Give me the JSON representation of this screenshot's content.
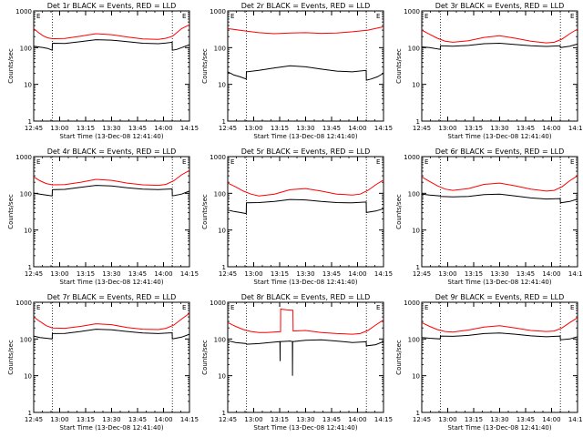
{
  "chart_data": [
    {
      "type": "line",
      "title": "Det 1r BLACK = Events, RED = LLD",
      "xlabel": "Start Time (13-Dec-08 12:41:40)",
      "ylabel": "Counts/sec",
      "y_scale": "log",
      "ylim": [
        1,
        1000
      ],
      "xlim": [
        0,
        100
      ],
      "x_ticks": [
        "12:45",
        "13:00",
        "13:15",
        "13:30",
        "13:45",
        "14:00",
        "14:15"
      ],
      "y_ticks": [
        "1",
        "10",
        "100",
        "1000"
      ],
      "corner_labels": [
        "E",
        "E"
      ],
      "dotted_lines_x": [
        12,
        89
      ],
      "series": [
        {
          "name": "LLD",
          "color": "#ff0000",
          "x": [
            0,
            3,
            6,
            9,
            12,
            13,
            20,
            30,
            40,
            50,
            60,
            70,
            80,
            85,
            89,
            90,
            95,
            100
          ],
          "y": [
            330,
            260,
            210,
            185,
            175,
            175,
            178,
            205,
            240,
            225,
            195,
            172,
            168,
            180,
            205,
            220,
            330,
            420
          ]
        },
        {
          "name": "Events",
          "color": "#000000",
          "x": [
            0,
            3,
            6,
            9,
            11.9,
            12,
            13,
            20,
            30,
            40,
            50,
            60,
            70,
            80,
            85,
            88.9,
            89,
            92,
            95,
            100
          ],
          "y": [
            110,
            105,
            100,
            95,
            85,
            130,
            132,
            130,
            145,
            165,
            160,
            145,
            132,
            128,
            133,
            140,
            85,
            90,
            100,
            120
          ]
        }
      ]
    },
    {
      "type": "line",
      "title": "Det 2r BLACK = Events, RED = LLD",
      "xlabel": "Start Time (13-Dec-08 12:41:40)",
      "ylabel": "Counts/sec",
      "y_scale": "log",
      "ylim": [
        1,
        1000
      ],
      "xlim": [
        0,
        100
      ],
      "x_ticks": [
        "12:45",
        "13:00",
        "13:15",
        "13:30",
        "13:45",
        "14:00",
        "14:15"
      ],
      "y_ticks": [
        "1",
        "10",
        "100",
        "1000"
      ],
      "corner_labels": [
        "E",
        "E"
      ],
      "dotted_lines_x": [
        12,
        89
      ],
      "series": [
        {
          "name": "LLD",
          "color": "#ff0000",
          "x": [
            0,
            10,
            20,
            30,
            40,
            50,
            60,
            70,
            80,
            90,
            100
          ],
          "y": [
            330,
            290,
            255,
            240,
            250,
            255,
            245,
            250,
            270,
            300,
            370
          ]
        },
        {
          "name": "Events",
          "color": "#000000",
          "x": [
            0,
            4,
            8,
            11.9,
            12,
            20,
            30,
            40,
            50,
            60,
            70,
            80,
            88.9,
            89,
            92,
            96,
            100
          ],
          "y": [
            22,
            18,
            16,
            14,
            22,
            24,
            28,
            32,
            30,
            26,
            23,
            22,
            24,
            13,
            14,
            16,
            20
          ]
        }
      ]
    },
    {
      "type": "line",
      "title": "Det 3r BLACK = Events, RED = LLD",
      "xlabel": "Start Time (13-Dec-08 12:41:40)",
      "ylabel": "Counts/sec",
      "y_scale": "log",
      "ylim": [
        1,
        1000
      ],
      "xlim": [
        0,
        100
      ],
      "x_ticks": [
        "12:45",
        "13:00",
        "13:15",
        "13:30",
        "13:45",
        "14:00",
        "14:15"
      ],
      "y_ticks": [
        "1",
        "10",
        "100",
        "1000"
      ],
      "corner_labels": [
        "E",
        "E"
      ],
      "dotted_lines_x": [
        12,
        89
      ],
      "series": [
        {
          "name": "LLD",
          "color": "#ff0000",
          "x": [
            0,
            5,
            10,
            15,
            20,
            30,
            40,
            50,
            60,
            70,
            80,
            85,
            90,
            95,
            100
          ],
          "y": [
            300,
            230,
            180,
            150,
            140,
            155,
            190,
            210,
            180,
            150,
            135,
            140,
            170,
            240,
            320
          ]
        },
        {
          "name": "Events",
          "color": "#000000",
          "x": [
            0,
            5,
            11.9,
            12,
            20,
            30,
            40,
            50,
            60,
            70,
            80,
            88.9,
            89,
            95,
            100
          ],
          "y": [
            105,
            100,
            90,
            112,
            110,
            115,
            128,
            132,
            122,
            112,
            108,
            112,
            100,
            110,
            125
          ]
        }
      ]
    },
    {
      "type": "line",
      "title": "Det 4r BLACK = Events, RED = LLD",
      "xlabel": "Start Time (13-Dec-08 12:41:40)",
      "ylabel": "Counts/sec",
      "y_scale": "log",
      "ylim": [
        1,
        1000
      ],
      "xlim": [
        0,
        100
      ],
      "x_ticks": [
        "12:45",
        "13:00",
        "13:15",
        "13:30",
        "13:45",
        "14:00",
        "14:15"
      ],
      "y_ticks": [
        "1",
        "10",
        "100",
        "1000"
      ],
      "corner_labels": [
        "E",
        "E"
      ],
      "dotted_lines_x": [
        12,
        89
      ],
      "series": [
        {
          "name": "LLD",
          "color": "#ff0000",
          "x": [
            0,
            4,
            8,
            12,
            20,
            30,
            40,
            50,
            60,
            70,
            80,
            85,
            90,
            95,
            100
          ],
          "y": [
            280,
            220,
            185,
            170,
            172,
            200,
            240,
            225,
            190,
            170,
            165,
            175,
            220,
            320,
            420
          ]
        },
        {
          "name": "Events",
          "color": "#000000",
          "x": [
            0,
            4,
            8,
            11.9,
            12,
            20,
            30,
            40,
            50,
            60,
            70,
            80,
            88.9,
            89,
            95,
            100
          ],
          "y": [
            100,
            95,
            90,
            85,
            125,
            128,
            145,
            165,
            158,
            142,
            130,
            126,
            132,
            85,
            95,
            115
          ]
        }
      ]
    },
    {
      "type": "line",
      "title": "Det 5r BLACK = Events, RED = LLD",
      "xlabel": "Start Time (13-Dec-08 12:41:40)",
      "ylabel": "Counts/sec",
      "y_scale": "log",
      "ylim": [
        1,
        1000
      ],
      "xlim": [
        0,
        100
      ],
      "x_ticks": [
        "12:45",
        "13:00",
        "13:15",
        "13:30",
        "13:45",
        "14:00",
        "14:15"
      ],
      "y_ticks": [
        "1",
        "10",
        "100",
        "1000"
      ],
      "corner_labels": [
        "E",
        "E"
      ],
      "dotted_lines_x": [
        12,
        89
      ],
      "series": [
        {
          "name": "LLD",
          "color": "#ff0000",
          "x": [
            0,
            5,
            10,
            15,
            20,
            30,
            40,
            50,
            60,
            70,
            80,
            85,
            90,
            95,
            100
          ],
          "y": [
            190,
            150,
            115,
            95,
            85,
            95,
            125,
            135,
            115,
            95,
            90,
            95,
            120,
            170,
            230
          ]
        },
        {
          "name": "Events",
          "color": "#000000",
          "x": [
            0,
            4,
            8,
            11.9,
            12,
            20,
            30,
            40,
            50,
            60,
            70,
            80,
            88.9,
            89,
            95,
            100
          ],
          "y": [
            35,
            32,
            30,
            28,
            55,
            56,
            60,
            68,
            66,
            60,
            56,
            55,
            58,
            30,
            33,
            38
          ]
        }
      ]
    },
    {
      "type": "line",
      "title": "Det 6r BLACK = Events, RED = LLD",
      "xlabel": "Start Time (13-Dec-08 12:41:40)",
      "ylabel": "Counts/sec",
      "y_scale": "log",
      "ylim": [
        1,
        1000
      ],
      "xlim": [
        0,
        100
      ],
      "x_ticks": [
        "12:45",
        "13:00",
        "13:15",
        "13:30",
        "13:45",
        "14:00",
        "14:15"
      ],
      "y_ticks": [
        "1",
        "10",
        "100",
        "1000"
      ],
      "corner_labels": [
        "E",
        "E"
      ],
      "dotted_lines_x": [
        12,
        89
      ],
      "series": [
        {
          "name": "LLD",
          "color": "#ff0000",
          "x": [
            0,
            5,
            10,
            15,
            20,
            30,
            40,
            50,
            60,
            70,
            80,
            85,
            90,
            95,
            100
          ],
          "y": [
            280,
            210,
            160,
            130,
            120,
            135,
            175,
            190,
            160,
            130,
            115,
            120,
            150,
            220,
            300
          ]
        },
        {
          "name": "Events",
          "color": "#000000",
          "x": [
            0,
            5,
            11.9,
            12,
            20,
            30,
            40,
            50,
            60,
            70,
            80,
            88.9,
            89,
            95,
            100
          ],
          "y": [
            95,
            90,
            85,
            82,
            80,
            82,
            92,
            95,
            85,
            75,
            70,
            72,
            55,
            60,
            70
          ]
        }
      ]
    },
    {
      "type": "line",
      "title": "Det 7r BLACK = Events, RED = LLD",
      "xlabel": "Start Time (13-Dec-08 12:41:40)",
      "ylabel": "Counts/sec",
      "y_scale": "log",
      "ylim": [
        1,
        1000
      ],
      "xlim": [
        0,
        100
      ],
      "x_ticks": [
        "12:45",
        "13:00",
        "13:15",
        "13:30",
        "13:45",
        "14:00",
        "14:15"
      ],
      "y_ticks": [
        "1",
        "10",
        "100",
        "1000"
      ],
      "corner_labels": [
        "E",
        "E"
      ],
      "dotted_lines_x": [
        12,
        89
      ],
      "series": [
        {
          "name": "LLD",
          "color": "#ff0000",
          "x": [
            0,
            4,
            8,
            12,
            20,
            30,
            40,
            50,
            60,
            70,
            80,
            85,
            90,
            95,
            100
          ],
          "y": [
            400,
            300,
            230,
            200,
            195,
            220,
            260,
            245,
            205,
            185,
            180,
            195,
            240,
            350,
            500
          ]
        },
        {
          "name": "Events",
          "color": "#000000",
          "x": [
            0,
            4,
            8,
            11.9,
            12,
            20,
            30,
            40,
            50,
            60,
            70,
            80,
            88.9,
            89,
            95,
            100
          ],
          "y": [
            120,
            110,
            105,
            100,
            140,
            142,
            160,
            185,
            178,
            160,
            145,
            140,
            148,
            100,
            112,
            135
          ]
        }
      ]
    },
    {
      "type": "line",
      "title": "Det 8r BLACK = Events, RED = LLD",
      "xlabel": "Start Time (13-Dec-08 12:41:40)",
      "ylabel": "Counts/sec",
      "y_scale": "log",
      "ylim": [
        1,
        1000
      ],
      "xlim": [
        0,
        100
      ],
      "x_ticks": [
        "12:45",
        "13:00",
        "13:15",
        "13:30",
        "13:45",
        "14:00",
        "14:15"
      ],
      "y_ticks": [
        "1",
        "10",
        "100",
        "1000"
      ],
      "corner_labels": [
        "E",
        "E"
      ],
      "dotted_lines_x": [
        12,
        89
      ],
      "series": [
        {
          "name": "LLD",
          "color": "#ff0000",
          "x": [
            0,
            5,
            10,
            15,
            20,
            25,
            33.9,
            34,
            38,
            41.9,
            42,
            50,
            60,
            70,
            80,
            85,
            90,
            95,
            100
          ],
          "y": [
            280,
            220,
            180,
            160,
            150,
            150,
            158,
            650,
            620,
            600,
            165,
            170,
            150,
            140,
            135,
            140,
            170,
            240,
            330
          ]
        },
        {
          "name": "Events",
          "color": "#000000",
          "x": [
            0,
            5,
            11.9,
            12,
            20,
            30,
            33.5,
            33.6,
            33.7,
            40,
            41.5,
            41.6,
            41.7,
            50,
            60,
            70,
            80,
            88.9,
            89,
            95,
            100
          ],
          "y": [
            90,
            80,
            75,
            72,
            75,
            82,
            85,
            25,
            85,
            88,
            85,
            10,
            85,
            92,
            95,
            88,
            80,
            84,
            65,
            70,
            85
          ]
        }
      ]
    },
    {
      "type": "line",
      "title": "Det 9r BLACK = Events, RED = LLD",
      "xlabel": "Start Time (13-Dec-08 12:41:40)",
      "ylabel": "Counts/sec",
      "y_scale": "log",
      "ylim": [
        1,
        1000
      ],
      "xlim": [
        0,
        100
      ],
      "x_ticks": [
        "12:45",
        "13:00",
        "13:15",
        "13:30",
        "13:45",
        "14:00",
        "14:15"
      ],
      "y_ticks": [
        "1",
        "10",
        "100",
        "1000"
      ],
      "corner_labels": [
        "E",
        "E"
      ],
      "dotted_lines_x": [
        12,
        89
      ],
      "series": [
        {
          "name": "LLD",
          "color": "#ff0000",
          "x": [
            0,
            5,
            10,
            15,
            20,
            30,
            40,
            50,
            60,
            70,
            80,
            85,
            90,
            95,
            100
          ],
          "y": [
            280,
            220,
            180,
            160,
            155,
            175,
            210,
            230,
            200,
            170,
            160,
            165,
            200,
            280,
            380
          ]
        },
        {
          "name": "Events",
          "color": "#000000",
          "x": [
            0,
            5,
            11.9,
            12,
            20,
            30,
            40,
            50,
            60,
            70,
            80,
            88.9,
            89,
            95,
            100
          ],
          "y": [
            110,
            105,
            100,
            120,
            118,
            125,
            140,
            145,
            135,
            122,
            115,
            120,
            95,
            100,
            115
          ]
        }
      ]
    }
  ]
}
